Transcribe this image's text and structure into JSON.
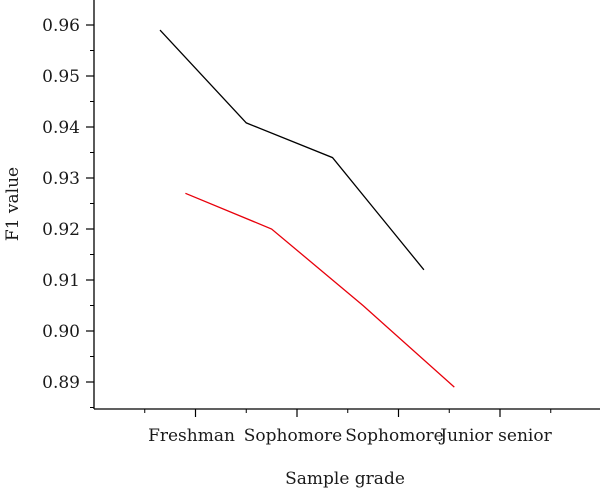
{
  "chart_data": {
    "type": "line",
    "title": "",
    "xlabel": "Sample grade",
    "ylabel": "F1 value",
    "categories": [
      "Freshman",
      "Sophomore",
      "Sophomore",
      "Junior senior"
    ],
    "ylim": [
      0.885,
      0.965
    ],
    "yticks": [
      0.89,
      0.9,
      0.91,
      0.92,
      0.93,
      0.94,
      0.95,
      0.96
    ],
    "ytick_labels": [
      "0.89",
      "0.90",
      "0.91",
      "0.92",
      "0.93",
      "0.94",
      "0.95",
      "0.96"
    ],
    "grid": false,
    "legend": "none",
    "series": [
      {
        "color": "#000000",
        "x": [
          0.65,
          1.5,
          2.35,
          3.25
        ],
        "values": [
          0.959,
          0.9408,
          0.934,
          0.912
        ]
      },
      {
        "color": "#e8000b",
        "x": [
          0.9,
          1.75,
          2.65,
          3.55
        ],
        "values": [
          0.927,
          0.92,
          0.905,
          0.889
        ]
      }
    ]
  }
}
